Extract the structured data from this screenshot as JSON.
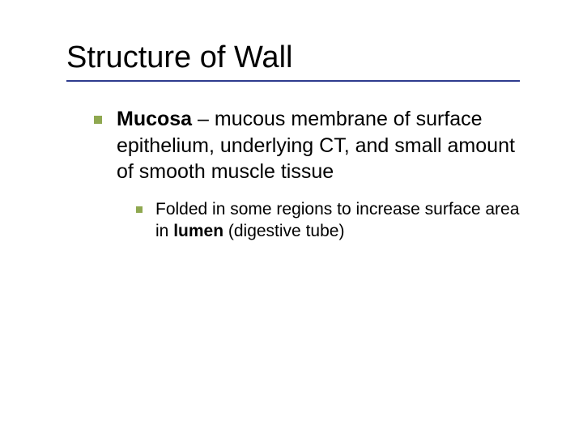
{
  "title": "Structure of Wall",
  "colors": {
    "bullet": "#8fa850",
    "underline": "#2e3b8e",
    "text": "#000000",
    "background": "#ffffff"
  },
  "level1": {
    "bold": "Mucosa",
    "rest": " – mucous membrane of surface epithelium, underlying CT, and small amount of smooth muscle tissue"
  },
  "level2": {
    "pre": "Folded in some regions to increase surface area in ",
    "bold": "lumen",
    "post": " (digestive tube)"
  },
  "typography": {
    "title_fontsize": 38,
    "level1_fontsize": 25,
    "level2_fontsize": 21,
    "font_family": "Verdana"
  }
}
